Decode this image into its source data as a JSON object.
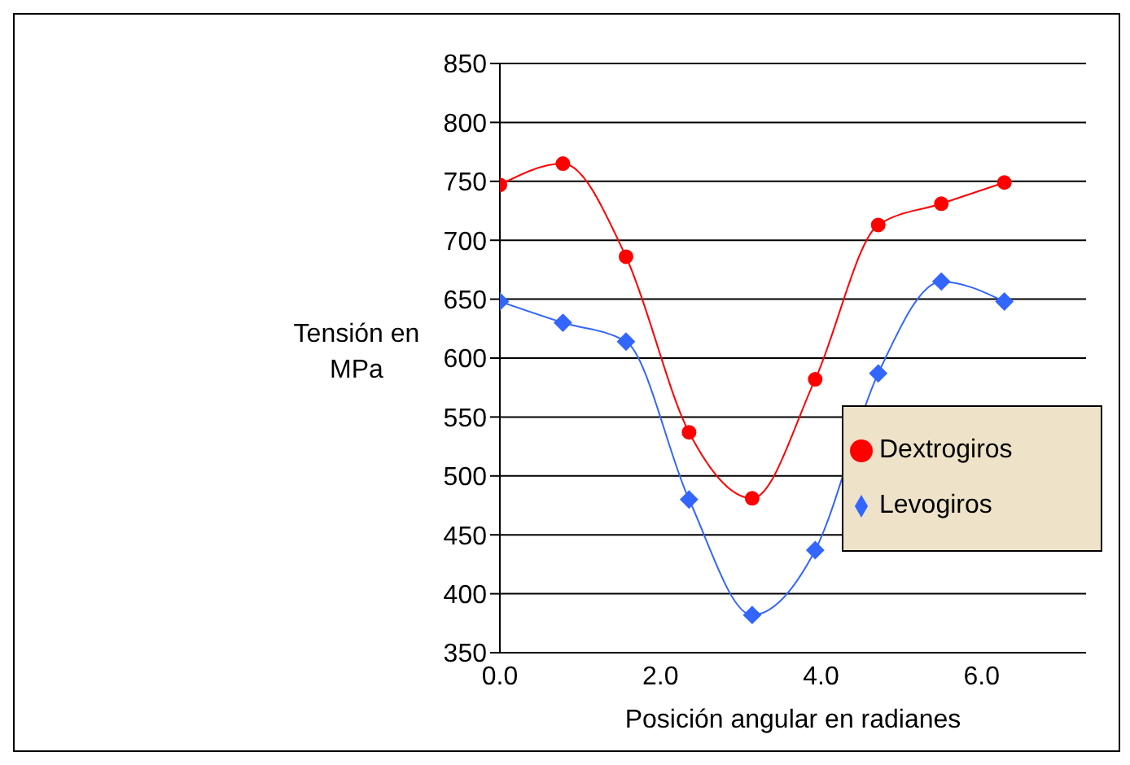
{
  "chart_data": {
    "type": "line",
    "xlabel": "Posición angular en radianes",
    "ylabel": "Tensión en MPa",
    "xlim": [
      0,
      7.3
    ],
    "xticks": [
      {
        "value": 0,
        "label": "0.0"
      },
      {
        "value": 2,
        "label": "2.0"
      },
      {
        "value": 4,
        "label": "4.0"
      },
      {
        "value": 6,
        "label": "6.0"
      }
    ],
    "ylim": [
      350,
      850
    ],
    "yticks": [
      350,
      400,
      450,
      500,
      550,
      600,
      650,
      700,
      750,
      800,
      850
    ],
    "x": [
      0,
      0.785,
      1.571,
      2.356,
      3.142,
      3.927,
      4.712,
      5.498,
      6.283
    ],
    "series": [
      {
        "name": "Levogiros",
        "color": "#3366ff",
        "marker": "diamond",
        "values": [
          648,
          630,
          614,
          480,
          382,
          437,
          587,
          665,
          648
        ]
      },
      {
        "name": "Dextrogiros",
        "color": "#ff0000",
        "marker": "circle",
        "values": [
          747,
          765,
          686,
          537,
          481,
          582,
          713,
          731,
          749
        ]
      }
    ],
    "grid": "y",
    "legend": "right",
    "line_style": "solid"
  }
}
